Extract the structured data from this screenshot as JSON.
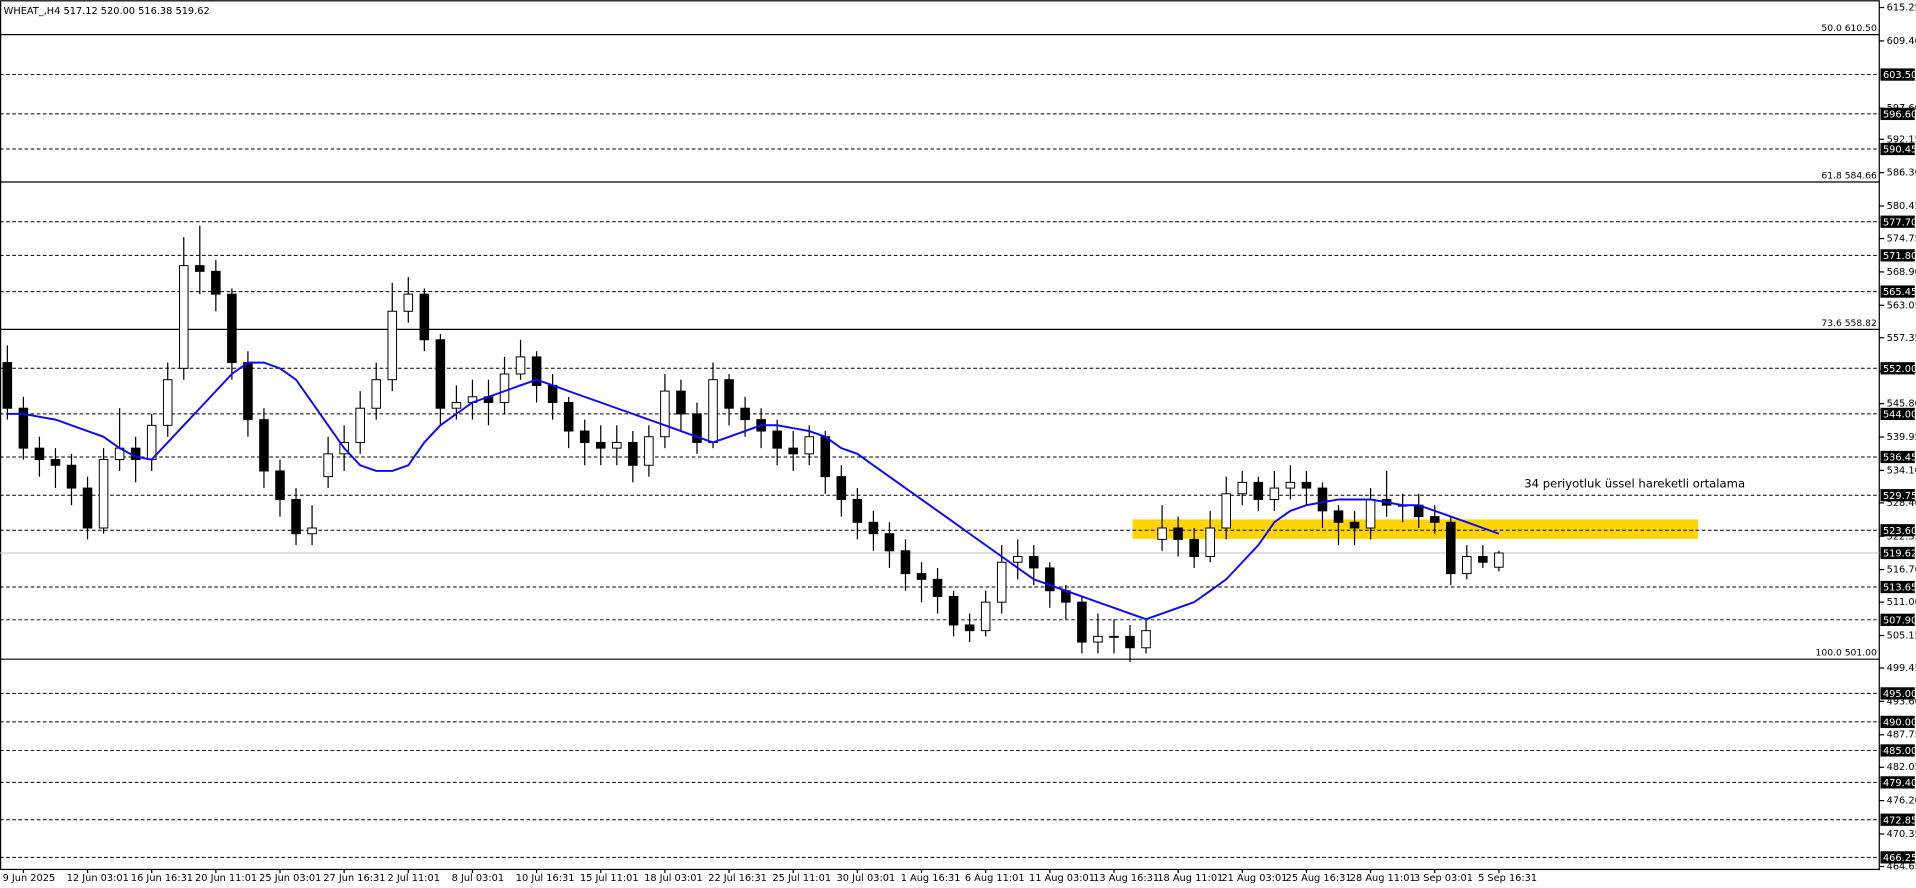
{
  "chart_data": {
    "type": "candlestick",
    "header": "WHEAT_,H4  517.12 520.00 516.38 519.62",
    "categories": [
      null,
      "9 Jun 2025",
      null,
      null,
      null,
      "12 Jun 03:01",
      null,
      null,
      null,
      "16 Jun 16:31",
      null,
      null,
      null,
      "20 Jun 11:01",
      null,
      null,
      null,
      "25 Jun 03:01",
      null,
      null,
      null,
      "27 Jun 16:31",
      null,
      null,
      null,
      "2 Jul 11:01",
      null,
      null,
      null,
      "8 Jul 03:01",
      null,
      null,
      null,
      "10 Jul 16:31",
      null,
      null,
      null,
      "15 Jul 11:01",
      null,
      null,
      null,
      "18 Jul 03:01",
      null,
      null,
      null,
      "22 Jul 16:31",
      null,
      null,
      null,
      "25 Jul 11:01",
      null,
      null,
      null,
      "30 Jul 03:01",
      null,
      null,
      null,
      "1 Aug 16:31",
      null,
      null,
      null,
      "6 Aug 11:01",
      null,
      null,
      null,
      "11 Aug 03:01",
      null,
      null,
      null,
      "13 Aug 16:31",
      null,
      null,
      null,
      "18 Aug 11:01",
      null,
      null,
      null,
      "21 Aug 03:01",
      null,
      null,
      null,
      "25 Aug 16:31",
      null,
      null,
      null,
      "28 Aug 11:01",
      null,
      null,
      null,
      "3 Sep 03:01",
      null,
      null,
      null,
      "5 Sep 16:31"
    ],
    "open": [
      553,
      545,
      538,
      536,
      535,
      531,
      524,
      536,
      538,
      536,
      542,
      552,
      570,
      569,
      565,
      553,
      543,
      534,
      529,
      523,
      533,
      537,
      539,
      545,
      550,
      562,
      565,
      557,
      545,
      546,
      547,
      546,
      551,
      554,
      549,
      546,
      541,
      539,
      538,
      539,
      535,
      540,
      548,
      544,
      539,
      550,
      545,
      543,
      541,
      538,
      537,
      540,
      533,
      529,
      525,
      523,
      520,
      516,
      515,
      512,
      507,
      506,
      511,
      518,
      519,
      517,
      513,
      511,
      504,
      505,
      505,
      503,
      522,
      524,
      522,
      519,
      524,
      530,
      532,
      529,
      531,
      532,
      531,
      527,
      525,
      524,
      529,
      528,
      528,
      526,
      525,
      516,
      519,
      517.12
    ],
    "high": [
      556,
      547,
      540,
      538,
      537,
      533,
      538,
      545,
      540,
      544,
      553,
      575,
      577,
      571,
      566,
      555,
      545,
      536,
      531,
      528,
      540,
      542,
      548,
      553,
      567,
      568,
      566,
      558,
      549,
      550,
      550,
      554,
      557,
      555,
      551,
      547,
      543,
      542,
      542,
      541,
      542,
      551,
      550,
      546,
      553,
      551,
      547,
      545,
      543,
      541,
      542,
      541,
      535,
      531,
      527,
      525,
      522,
      518,
      517,
      513,
      509,
      513,
      521,
      522,
      521,
      518,
      514,
      512,
      509,
      508,
      507,
      508,
      528,
      526,
      524,
      527,
      533,
      534,
      533,
      534,
      535,
      534,
      532,
      528,
      527,
      531,
      534,
      530,
      530,
      528,
      526,
      521,
      521,
      520
    ],
    "low": [
      543,
      536,
      533,
      531,
      528,
      522,
      523,
      534,
      532,
      534,
      540,
      550,
      565,
      562,
      550,
      540,
      531,
      526,
      521,
      521,
      531,
      534,
      537,
      543,
      548,
      560,
      555,
      542,
      543,
      543,
      542,
      544,
      550,
      546,
      543,
      538,
      535,
      535,
      535,
      532,
      533,
      538,
      541,
      537,
      538,
      542,
      540,
      538,
      535,
      534,
      535,
      530,
      526,
      522,
      520,
      517,
      513,
      511,
      509,
      505,
      504,
      505,
      509,
      515,
      514,
      510,
      508,
      502,
      502,
      502,
      500.5,
      502,
      520,
      519,
      517,
      518,
      522,
      528,
      527,
      527,
      529,
      528,
      524,
      521,
      521,
      522,
      526,
      525,
      524,
      523,
      514,
      515,
      517,
      516.38
    ],
    "close": [
      545,
      538,
      536,
      535,
      531,
      524,
      536,
      538,
      536,
      542,
      550,
      570,
      569,
      565,
      553,
      543,
      534,
      529,
      523,
      524,
      537,
      539,
      545,
      550,
      562,
      565,
      557,
      545,
      546,
      547,
      546,
      551,
      554,
      549,
      546,
      541,
      539,
      538,
      539,
      535,
      540,
      548,
      544,
      539,
      550,
      545,
      543,
      541,
      538,
      537,
      540,
      533,
      529,
      525,
      523,
      520,
      516,
      515,
      512,
      507,
      506,
      511,
      518,
      519,
      517,
      513,
      511,
      504,
      505,
      505,
      503,
      506,
      524,
      522,
      519,
      524,
      530,
      532,
      529,
      531,
      532,
      531,
      527,
      525,
      524,
      529,
      528,
      528,
      526,
      525,
      516,
      519,
      518,
      519.62
    ],
    "up_color": "#ffffff",
    "down_color": "#000000",
    "ema": {
      "color": "#0a0aff",
      "values": [
        544,
        544,
        543.5,
        543,
        542,
        541,
        540,
        538,
        536.5,
        536,
        539,
        542,
        545,
        548,
        551,
        553,
        553,
        552,
        550,
        546,
        542,
        538,
        535,
        534,
        534,
        535,
        539,
        542,
        544,
        546,
        547,
        548,
        549,
        550,
        549,
        548,
        547,
        546,
        545,
        544,
        543,
        542,
        541,
        540,
        539,
        540,
        541,
        542,
        542,
        541.5,
        541,
        540,
        538,
        537,
        535,
        533,
        531,
        529,
        527,
        525,
        523,
        521,
        519,
        517,
        515,
        514,
        513,
        512,
        511,
        510,
        509,
        508,
        509,
        510,
        511,
        513,
        515,
        518,
        521,
        525,
        527,
        528,
        528.5,
        529,
        529,
        529,
        528.5,
        528,
        528,
        527,
        526,
        525,
        524,
        523
      ]
    },
    "annotation": "34 periyotluk üssel hareketli ortalama",
    "zone": {
      "ylim": [
        522.1,
        525.5
      ],
      "color": "#ffd400"
    },
    "ylim": [
      464.65,
      615.25
    ],
    "yticks": [
      615.25,
      {
        "value": 609.4,
        "label": "609.40"
      },
      {
        "value": 597.6,
        "label": "597.60"
      },
      592.15,
      {
        "value": 586.3,
        "label": "586.30"
      },
      580.45,
      574.75,
      {
        "value": 568.9,
        "label": "568.90"
      },
      563.05,
      557.35,
      {
        "value": 551.5,
        "label": "551.50"
      },
      {
        "value": 545.8,
        "label": "545.80"
      },
      539.95,
      {
        "value": 534.1,
        "label": "534.10"
      },
      {
        "value": 528.4,
        "label": "528.40"
      },
      522.55,
      {
        "value": 516.7,
        "label": "516.70"
      },
      {
        "value": 511,
        "label": "511.00"
      },
      505.15,
      499.45,
      {
        "value": 493.6,
        "label": "493.60"
      },
      487.75,
      482.05,
      {
        "value": 476.2,
        "label": "476.20"
      },
      470.35,
      464.65
    ],
    "levels": [
      {
        "value": 603.5,
        "label": "603.50"
      },
      {
        "value": 596.6,
        "label": "596.60"
      },
      590.45,
      {
        "value": 577.7,
        "label": "577.70"
      },
      {
        "value": 571.8,
        "label": "571.80"
      },
      565.45,
      {
        "value": 552,
        "label": "552.00"
      },
      {
        "value": 544,
        "label": "544.00"
      },
      536.45,
      529.75,
      {
        "value": 523.6,
        "label": "523.60"
      },
      513.65,
      {
        "value": 507.9,
        "label": "507.90"
      },
      {
        "value": 495,
        "label": "495.00"
      },
      {
        "value": 490,
        "label": "490.00"
      },
      {
        "value": 485,
        "label": "485.00"
      },
      {
        "value": 479.4,
        "label": "479.40"
      },
      472.85,
      466.25
    ],
    "current_price": 519.62,
    "fib_levels": [
      {
        "value": 610.5,
        "label": "50.0 610.50"
      },
      {
        "value": 584.66,
        "label": "61.8 584.66"
      },
      {
        "value": 558.82,
        "label": "73.6 558.82"
      },
      {
        "value": 501,
        "label": "100.0 501.00"
      }
    ]
  }
}
